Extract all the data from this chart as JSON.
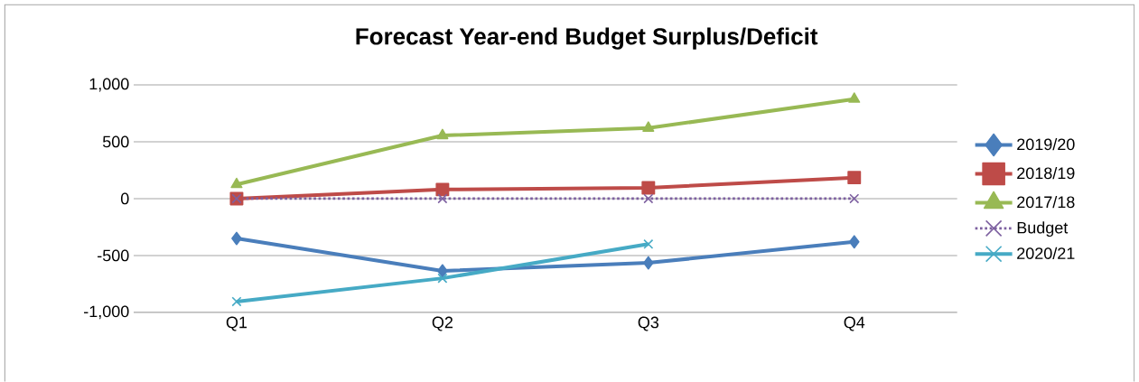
{
  "chart_data": {
    "type": "line",
    "title": "Forecast Year-end Budget Surplus/Deficit",
    "categories": [
      "Q1",
      "Q2",
      "Q3",
      "Q4"
    ],
    "series": [
      {
        "name": "2019/20",
        "color": "#4a7ebb",
        "marker": "diamond",
        "values": [
          -350,
          -635,
          -565,
          -380
        ]
      },
      {
        "name": "2018/19",
        "color": "#be4b48",
        "marker": "square",
        "values": [
          0,
          80,
          95,
          185
        ]
      },
      {
        "name": "2017/18",
        "color": "#98b954",
        "marker": "triangle",
        "values": [
          125,
          555,
          620,
          875
        ]
      },
      {
        "name": "Budget",
        "color": "#7d60a0",
        "marker": "cross",
        "line_style": "dotted",
        "values": [
          0,
          0,
          0,
          0
        ]
      },
      {
        "name": "2020/21",
        "color": "#46aac5",
        "marker": "cross",
        "values": [
          -905,
          -700,
          -400,
          null
        ]
      }
    ],
    "ylim": [
      -1000,
      1000
    ],
    "yticks": [
      {
        "value": -1000,
        "label": "-1,000"
      },
      {
        "value": -500,
        "label": "-500"
      },
      {
        "value": 0,
        "label": "0"
      },
      {
        "value": 500,
        "label": "500"
      },
      {
        "value": 1000,
        "label": "1,000"
      }
    ],
    "grid": "y",
    "legend": "right"
  }
}
